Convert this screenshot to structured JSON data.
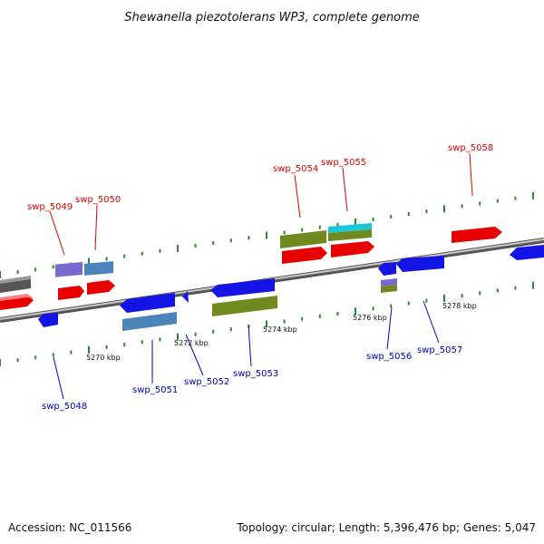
{
  "title": "Shewanella piezotolerans WP3, complete genome",
  "footer": {
    "accession": "Accession: NC_011566",
    "summary": "Topology: circular; Length: 5,396,476 bp; Genes: 5,047"
  },
  "colors": {
    "forward_label": "#dd0000",
    "reverse_label": "#0000bb",
    "tick": "#2a8a2a",
    "backbone": "#8a8a8a"
  },
  "scale_labels": [
    "5270 kbp",
    "5272 kbp",
    "5274 kbp",
    "5276 kbp",
    "5278 kbp"
  ],
  "gene_labels": [
    {
      "name": "swp_5048",
      "strand": "reverse"
    },
    {
      "name": "swp_5049",
      "strand": "forward"
    },
    {
      "name": "swp_5050",
      "strand": "forward"
    },
    {
      "name": "swp_5051",
      "strand": "reverse"
    },
    {
      "name": "swp_5052",
      "strand": "reverse"
    },
    {
      "name": "swp_5053",
      "strand": "reverse"
    },
    {
      "name": "swp_5054",
      "strand": "forward"
    },
    {
      "name": "swp_5055",
      "strand": "forward"
    },
    {
      "name": "swp_5056",
      "strand": "reverse"
    },
    {
      "name": "swp_5057",
      "strand": "reverse"
    },
    {
      "name": "swp_5058",
      "strand": "forward"
    }
  ]
}
